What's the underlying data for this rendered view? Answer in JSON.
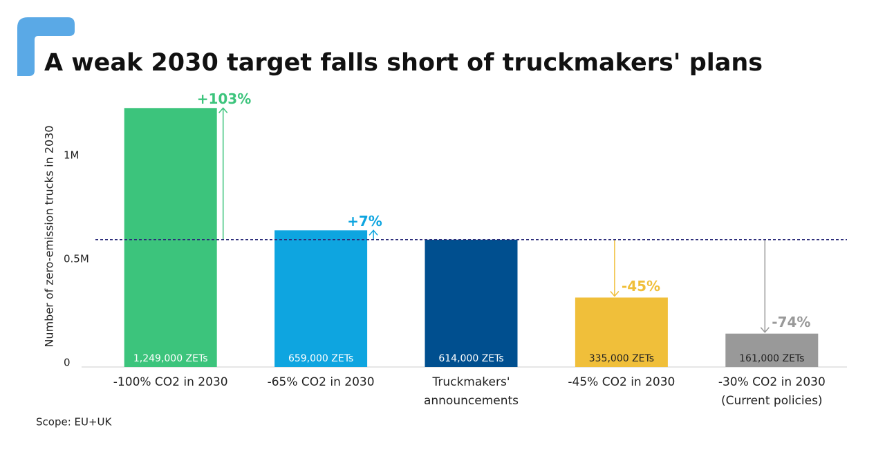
{
  "chart_data": {
    "type": "bar",
    "title": "A weak 2030 target falls short of truckmakers' plans",
    "y_axis_label": "Number of zero-emission trucks in 2030",
    "footnote": "Scope: EU+UK",
    "categories": [
      [
        "-100% CO2 in 2030"
      ],
      [
        "-65% CO2 in 2030"
      ],
      [
        "Truckmakers'",
        "announcements"
      ],
      [
        "-45% CO2 in 2030"
      ],
      [
        "-30% CO2 in 2030",
        "(Current policies)"
      ]
    ],
    "values": [
      1249000,
      659000,
      614000,
      335000,
      161000
    ],
    "value_labels": [
      "1,249,000 ZETs",
      "659,000 ZETs",
      "614,000 ZETs",
      "335,000 ZETs",
      "161,000 ZETs"
    ],
    "change_labels": [
      "+103%",
      "+7%",
      null,
      "-45%",
      "-74%"
    ],
    "colors": [
      "#3cc47c",
      "#0ea5e0",
      "#004f8f",
      "#f0bf3a",
      "#999999"
    ],
    "ylim": [
      0,
      1300000
    ],
    "yticks": [
      0,
      {
        "value": 500000,
        "label": "0.5M"
      },
      {
        "value": 1000000,
        "label": "1M"
      }
    ]
  }
}
